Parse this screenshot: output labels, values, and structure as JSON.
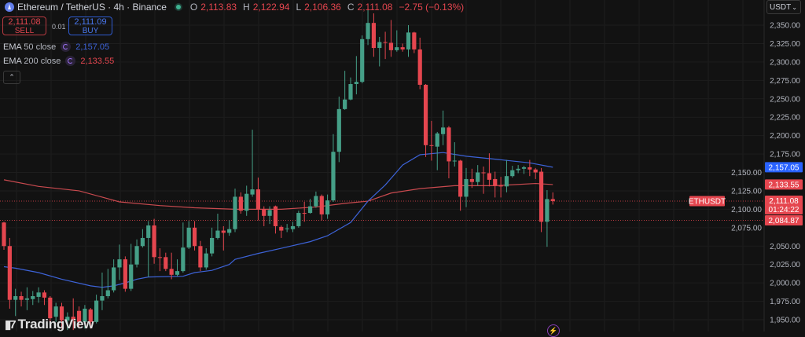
{
  "header": {
    "symbol_title": "Ethereum / TetherUS · 4h · Binance",
    "ohlc": [
      {
        "key": "O",
        "value": "2,113.83"
      },
      {
        "key": "H",
        "value": "2,122.94"
      },
      {
        "key": "L",
        "value": "2,106.36"
      },
      {
        "key": "C",
        "value": "2,111.08"
      }
    ],
    "change": "−2.75 (−0.13%)"
  },
  "trade": {
    "sell_price": "2,111.08",
    "sell_label": "SELL",
    "quantity": "0.01",
    "buy_price": "2,111.09",
    "buy_label": "BUY"
  },
  "indicators": [
    {
      "name": "EMA",
      "params": "50 close",
      "value": "2,157.05",
      "color": "#3d63d8"
    },
    {
      "name": "EMA",
      "params": "200 close",
      "value": "2,133.55",
      "color": "#c94a4f"
    }
  ],
  "collapse_icon": "chevron-up",
  "currency_selector": "USDT",
  "branding": "TradingView",
  "colors": {
    "up": "#459f87",
    "down": "#e5464f",
    "background": "#121212",
    "ema50": "#3d63d8",
    "ema200": "#c94a4f"
  },
  "chart_data": {
    "type": "candlestick",
    "symbol": "ETHUSDT",
    "interval": "4h",
    "ylim": [
      1940,
      2365
    ],
    "y_ticks": [
      "2,350.00",
      "2,325.00",
      "2,300.00",
      "2,275.00",
      "2,250.00",
      "2,225.00",
      "2,200.00",
      "2,175.00",
      "2,150.00",
      "2,125.00",
      "2,100.00",
      "2,075.00",
      "2,050.00",
      "2,025.00",
      "2,000.00",
      "1,975.00",
      "1,950.00"
    ],
    "grid": true,
    "ohlc": [
      [
        2082,
        2083,
        2045,
        2050
      ],
      [
        2050,
        2061,
        1965,
        1977
      ],
      [
        1977,
        1992,
        1955,
        1982
      ],
      [
        1982,
        1988,
        1968,
        1977
      ],
      [
        1977,
        1994,
        1963,
        1979
      ],
      [
        1978,
        1989,
        1970,
        1982
      ],
      [
        1981,
        1994,
        1973,
        1987
      ],
      [
        1987,
        1990,
        1970,
        1980
      ],
      [
        1980,
        1982,
        1947,
        1952
      ],
      [
        1954,
        1973,
        1947,
        1968
      ],
      [
        1968,
        1973,
        1938,
        1949
      ],
      [
        1949,
        1960,
        1936,
        1954
      ],
      [
        1954,
        1979,
        1936,
        1950
      ],
      [
        1962,
        1968,
        1938,
        1947
      ],
      [
        1947,
        1970,
        1938,
        1965
      ],
      [
        1964,
        1966,
        1938,
        1947
      ],
      [
        1947,
        1984,
        1945,
        1976
      ],
      [
        1976,
        2014,
        1963,
        1982
      ],
      [
        1982,
        2019,
        1979,
        1990
      ],
      [
        1990,
        2032,
        1987,
        2021
      ],
      [
        2021,
        2052,
        2004,
        2032
      ],
      [
        2032,
        2036,
        1988,
        1992
      ],
      [
        1992,
        2053,
        1989,
        2025
      ],
      [
        2025,
        2059,
        2021,
        2050
      ],
      [
        2050,
        2073,
        2048,
        2061
      ],
      [
        2061,
        2084,
        2008,
        2078
      ],
      [
        2078,
        2087,
        2026,
        2035
      ],
      [
        2035,
        2047,
        2016,
        2034
      ],
      [
        2035,
        2041,
        2016,
        2019
      ],
      [
        2019,
        2041,
        2005,
        2011
      ],
      [
        2011,
        2032,
        2009,
        2016
      ],
      [
        2016,
        2082,
        2014,
        2048
      ],
      [
        2048,
        2084,
        2046,
        2075
      ],
      [
        2075,
        2084,
        2044,
        2050
      ],
      [
        2050,
        2057,
        2016,
        2021
      ],
      [
        2021,
        2047,
        2018,
        2040
      ],
      [
        2040,
        2075,
        2036,
        2061
      ],
      [
        2061,
        2094,
        2059,
        2071
      ],
      [
        2071,
        2077,
        2044,
        2068
      ],
      [
        2068,
        2085,
        2064,
        2073
      ],
      [
        2073,
        2128,
        2069,
        2117
      ],
      [
        2117,
        2123,
        2094,
        2098
      ],
      [
        2098,
        2132,
        2091,
        2121
      ],
      [
        2120,
        2208,
        2117,
        2127
      ],
      [
        2127,
        2143,
        2085,
        2100
      ],
      [
        2100,
        2104,
        2077,
        2091
      ],
      [
        2091,
        2104,
        2080,
        2099
      ],
      [
        2104,
        2105,
        2067,
        2077
      ],
      [
        2076,
        2078,
        2061,
        2071
      ],
      [
        2073,
        2080,
        2069,
        2074
      ],
      [
        2073,
        2083,
        2069,
        2077
      ],
      [
        2077,
        2098,
        2075,
        2095
      ],
      [
        2095,
        2110,
        2083,
        2094
      ],
      [
        2095,
        2114,
        2094,
        2104
      ],
      [
        2104,
        2124,
        2102,
        2118
      ],
      [
        2118,
        2120,
        2085,
        2093
      ],
      [
        2093,
        2120,
        2087,
        2112
      ],
      [
        2112,
        2202,
        2110,
        2178
      ],
      [
        2178,
        2253,
        2164,
        2236
      ],
      [
        2236,
        2288,
        2235,
        2249
      ],
      [
        2249,
        2279,
        2248,
        2270
      ],
      [
        2270,
        2308,
        2256,
        2273
      ],
      [
        2273,
        2336,
        2271,
        2331
      ],
      [
        2331,
        2373,
        2323,
        2353
      ],
      [
        2353,
        2366,
        2307,
        2319
      ],
      [
        2319,
        2334,
        2294,
        2327
      ],
      [
        2327,
        2341,
        2304,
        2326
      ],
      [
        2326,
        2357,
        2307,
        2316
      ],
      [
        2316,
        2343,
        2314,
        2320
      ],
      [
        2320,
        2325,
        2314,
        2317
      ],
      [
        2317,
        2350,
        2307,
        2340
      ],
      [
        2340,
        2341,
        2312,
        2317
      ],
      [
        2317,
        2333,
        2263,
        2269
      ],
      [
        2269,
        2270,
        2171,
        2187
      ],
      [
        2187,
        2220,
        2166,
        2186
      ],
      [
        2185,
        2205,
        2153,
        2203
      ],
      [
        2202,
        2234,
        2187,
        2211
      ],
      [
        2211,
        2213,
        2142,
        2165
      ],
      [
        2165,
        2191,
        2158,
        2166
      ],
      [
        2166,
        2167,
        2098,
        2117
      ],
      [
        2117,
        2156,
        2103,
        2141
      ],
      [
        2141,
        2155,
        2129,
        2137
      ],
      [
        2137,
        2160,
        2132,
        2150
      ],
      [
        2150,
        2158,
        2121,
        2149
      ],
      [
        2149,
        2176,
        2131,
        2140
      ],
      [
        2141,
        2151,
        2116,
        2132
      ],
      [
        2132,
        2144,
        2116,
        2131
      ],
      [
        2131,
        2167,
        2123,
        2145
      ],
      [
        2145,
        2159,
        2143,
        2153
      ],
      [
        2153,
        2160,
        2149,
        2155
      ],
      [
        2155,
        2159,
        2148,
        2157
      ],
      [
        2157,
        2167,
        2145,
        2154
      ],
      [
        2154,
        2156,
        2141,
        2150
      ],
      [
        2151,
        2156,
        2069,
        2083
      ],
      [
        2083,
        2126,
        2049,
        2113.83
      ],
      [
        2113.83,
        2122.94,
        2106.36,
        2111.08
      ]
    ],
    "ema50": [
      [
        0,
        2022
      ],
      [
        2,
        2020
      ],
      [
        6,
        2014
      ],
      [
        10,
        2005
      ],
      [
        15,
        1996
      ],
      [
        17,
        1994
      ],
      [
        19,
        1996
      ],
      [
        21,
        2000
      ],
      [
        23,
        2005
      ],
      [
        25,
        2008
      ],
      [
        31,
        2009
      ],
      [
        33,
        2014
      ],
      [
        36,
        2017
      ],
      [
        39,
        2025
      ],
      [
        40,
        2032
      ],
      [
        44,
        2040
      ],
      [
        48,
        2047
      ],
      [
        53,
        2056
      ],
      [
        56,
        2064
      ],
      [
        60,
        2082
      ],
      [
        63,
        2111
      ],
      [
        66,
        2133
      ],
      [
        69,
        2160
      ],
      [
        72,
        2174
      ],
      [
        76,
        2177
      ],
      [
        80,
        2172
      ],
      [
        85,
        2168
      ],
      [
        91,
        2163
      ],
      [
        95,
        2157.05
      ]
    ],
    "ema200": [
      [
        0,
        2140
      ],
      [
        6,
        2131
      ],
      [
        13,
        2125
      ],
      [
        20,
        2110
      ],
      [
        27,
        2105
      ],
      [
        33,
        2102
      ],
      [
        40,
        2100
      ],
      [
        48,
        2100
      ],
      [
        54,
        2103
      ],
      [
        59,
        2108
      ],
      [
        63,
        2111
      ],
      [
        67,
        2122
      ],
      [
        72,
        2128
      ],
      [
        78,
        2132
      ],
      [
        85,
        2132
      ],
      [
        92,
        2135
      ],
      [
        95,
        2133.55
      ]
    ],
    "price_labels": [
      {
        "text": "2,157.05",
        "value": 2157.05,
        "color": "#2962ff"
      },
      {
        "text": "2,133.55",
        "value": 2133.55,
        "color": "#e5464f"
      },
      {
        "text": "2,111.08",
        "sub": "01:24:22",
        "value": 2111.08,
        "color": "#e5464f",
        "tag": "ETHUSDT"
      },
      {
        "text": "2,084.87",
        "value": 2084.87,
        "color": "#e5464f"
      }
    ]
  }
}
